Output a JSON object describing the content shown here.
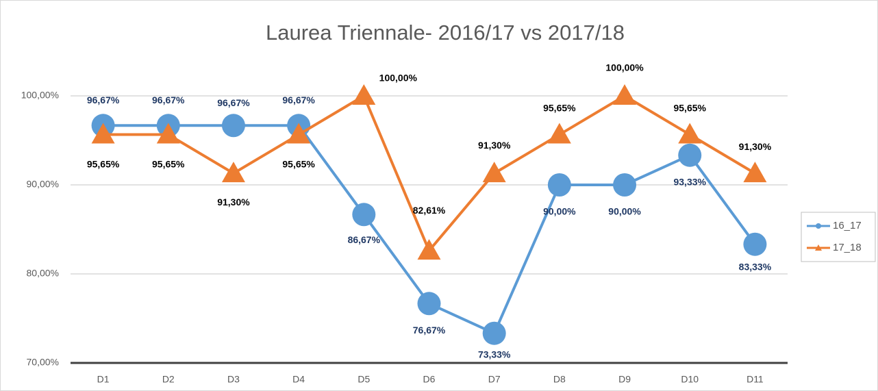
{
  "chart_data": {
    "type": "line",
    "title": "Laurea Triennale- 2016/17 vs 2017/18",
    "categories": [
      "D1",
      "D2",
      "D3",
      "D4",
      "D5",
      "D6",
      "D7",
      "D8",
      "D9",
      "D10",
      "D11"
    ],
    "series": [
      {
        "name": "16_17",
        "color": "#5b9bd5",
        "values": [
          96.67,
          96.67,
          96.67,
          96.67,
          86.67,
          76.67,
          73.33,
          90,
          90,
          93.33,
          83.33
        ],
        "value_labels": [
          "96,67%",
          "96,67%",
          "96,67%",
          "96,67%",
          "86,67%",
          "76,67%",
          "73,33%",
          "90,00%",
          "90,00%",
          "93,33%",
          "83,33%"
        ]
      },
      {
        "name": "17_18",
        "color": "#ed7d31",
        "values": [
          95.65,
          95.65,
          91.3,
          95.65,
          100,
          82.61,
          91.3,
          95.65,
          100,
          95.65,
          91.3
        ],
        "value_labels": [
          "95,65%",
          "95,65%",
          "91,30%",
          "95,65%",
          "100,00%",
          "82,61%",
          "91,30%",
          "95,65%",
          "100,00%",
          "95,65%",
          "91,30%"
        ]
      }
    ],
    "ylim": [
      70,
      100
    ],
    "yticks": [
      {
        "value": 70,
        "label": "70,00%"
      },
      {
        "value": 80,
        "label": "80,00%"
      },
      {
        "value": 90,
        "label": "90,00%"
      },
      {
        "value": 100,
        "label": "100,00%"
      }
    ],
    "grid": true,
    "legend": "right"
  }
}
